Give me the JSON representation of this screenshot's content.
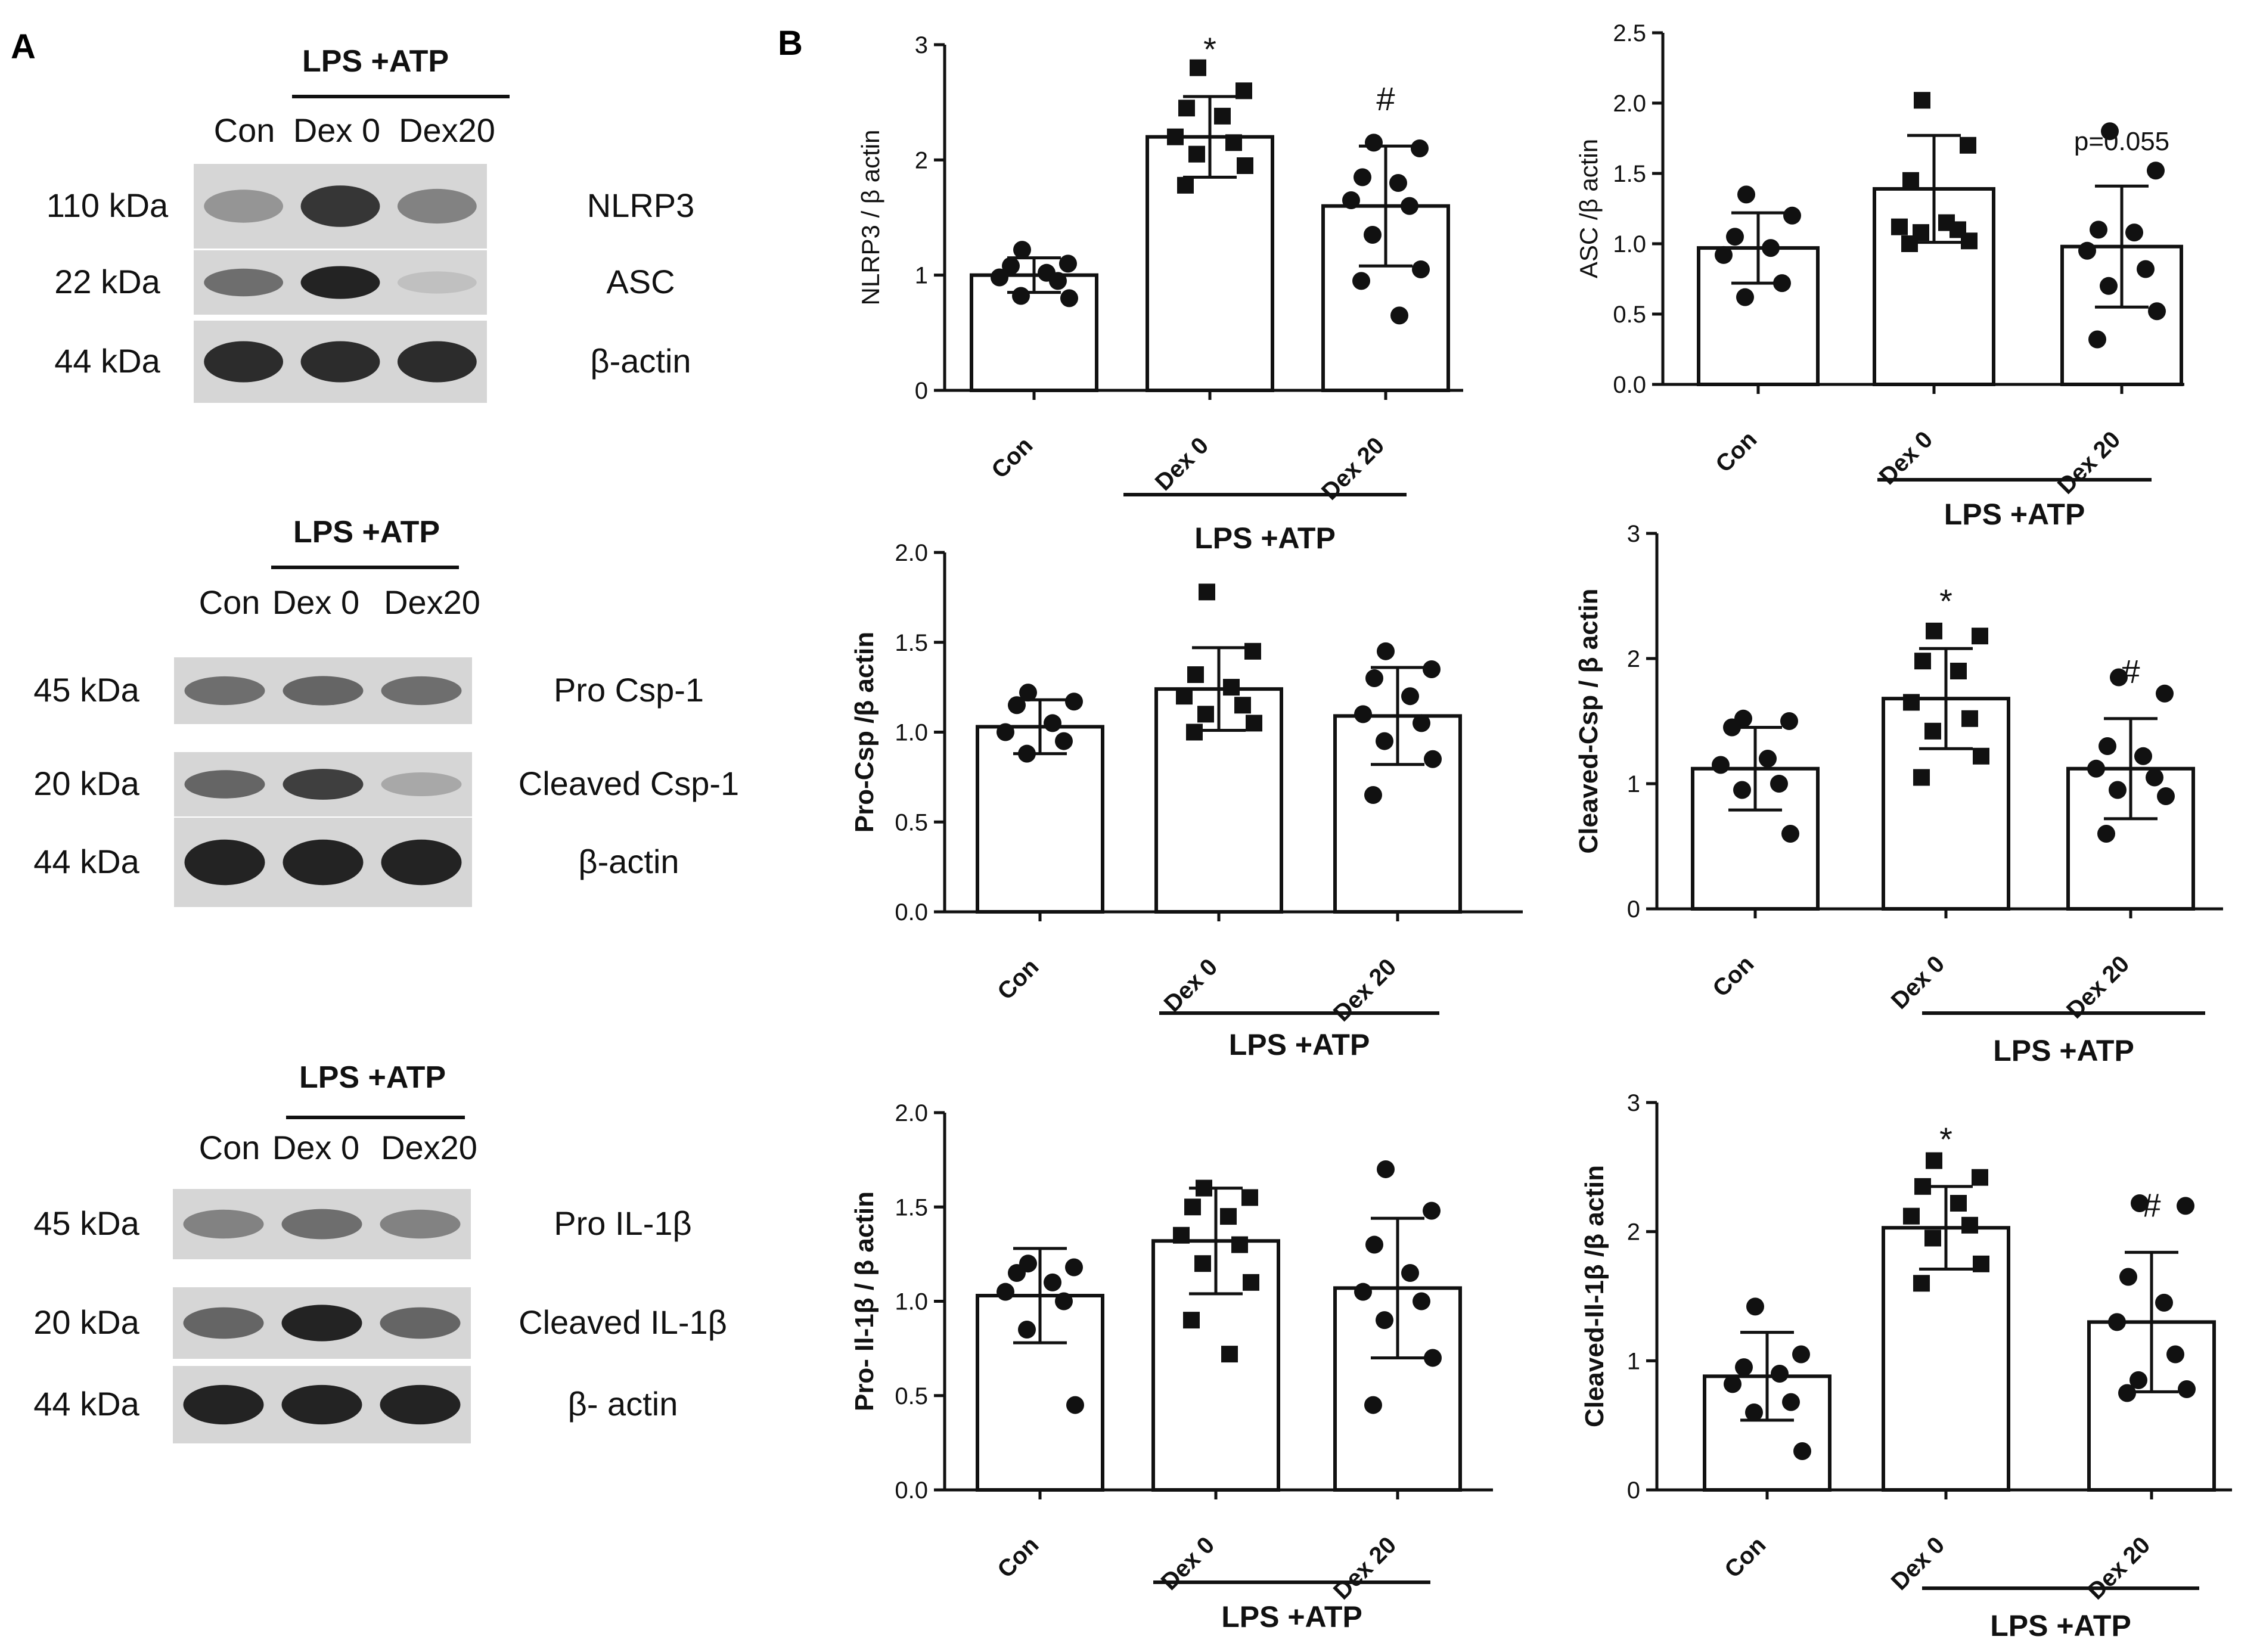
{
  "panels": {
    "a": "A",
    "b": "B"
  },
  "blots": [
    {
      "header": "LPS +ATP",
      "lanes": [
        "Con",
        "Dex 0",
        "Dex20"
      ],
      "rows": [
        {
          "mw": "110 kDa",
          "name": "NLRP3",
          "bands": [
            0.35,
            0.85,
            0.45
          ]
        },
        {
          "mw": "22 kDa",
          "name": "ASC",
          "bands": [
            0.55,
            0.95,
            0.12
          ]
        },
        {
          "mw": "44 kDa",
          "name": "β-actin",
          "bands": [
            0.9,
            0.9,
            0.9
          ]
        }
      ]
    },
    {
      "header": "LPS +ATP",
      "lanes": [
        "Con",
        "Dex 0",
        "Dex20"
      ],
      "rows": [
        {
          "mw": "45 kDa",
          "name": "Pro Csp-1",
          "bands": [
            0.55,
            0.6,
            0.55
          ]
        },
        {
          "mw": "20 kDa",
          "name": "Cleaved Csp-1",
          "bands": [
            0.6,
            0.8,
            0.25
          ]
        },
        {
          "mw": "44 kDa",
          "name": "β-actin",
          "bands": [
            0.95,
            0.95,
            0.95
          ]
        }
      ]
    },
    {
      "header": "LPS +ATP",
      "lanes": [
        "Con",
        "Dex 0",
        "Dex20"
      ],
      "rows": [
        {
          "mw": "45 kDa",
          "name": "Pro IL-1β",
          "bands": [
            0.45,
            0.55,
            0.45
          ]
        },
        {
          "mw": "20 kDa",
          "name": "Cleaved IL-1β",
          "bands": [
            0.6,
            0.95,
            0.6
          ]
        },
        {
          "mw": "44 kDa",
          "name": "β- actin",
          "bands": [
            0.95,
            0.95,
            0.95
          ]
        }
      ]
    }
  ],
  "chart_data": [
    {
      "type": "bar",
      "ylabel": "NLRP3 / β actin",
      "ylabel_bold": false,
      "ylim": [
        0,
        3
      ],
      "yticks": [
        "0",
        "1",
        "2",
        "3"
      ],
      "categories": [
        "Con",
        "Dex 0",
        "Dex 20"
      ],
      "group_label": "LPS +ATP",
      "values": [
        1.0,
        2.2,
        1.6
      ],
      "sd": [
        0.15,
        0.35,
        0.52
      ],
      "points": [
        [
          1.22,
          1.1,
          1.08,
          1.02,
          0.98,
          0.95,
          0.82,
          0.8
        ],
        [
          2.8,
          2.6,
          2.45,
          2.38,
          2.2,
          2.15,
          2.05,
          1.95,
          1.78
        ],
        [
          2.15,
          2.1,
          1.85,
          1.8,
          1.65,
          1.6,
          1.35,
          1.05,
          0.95,
          0.65
        ]
      ],
      "markers": [
        "circle",
        "square",
        "circle"
      ],
      "annotations": [
        "",
        "*",
        "#"
      ]
    },
    {
      "type": "bar",
      "ylabel": "ASC /β actin",
      "ylabel_bold": false,
      "ylim": [
        0,
        2.5
      ],
      "yticks": [
        "0.0",
        "0.5",
        "1.0",
        "1.5",
        "2.0",
        "2.5"
      ],
      "categories": [
        "Con",
        "Dex 0",
        "Dex 20"
      ],
      "group_label": "LPS +ATP",
      "values": [
        0.97,
        1.39,
        0.98
      ],
      "sd": [
        0.25,
        0.38,
        0.43
      ],
      "points": [
        [
          1.35,
          1.2,
          1.05,
          0.97,
          0.92,
          0.72,
          0.62
        ],
        [
          2.02,
          1.7,
          1.45,
          1.15,
          1.12,
          1.1,
          1.08,
          1.02,
          1.0
        ],
        [
          1.8,
          1.52,
          1.1,
          1.08,
          0.95,
          0.82,
          0.7,
          0.52,
          0.32
        ]
      ],
      "markers": [
        "circle",
        "square",
        "circle"
      ],
      "annotations": [
        "",
        "",
        "p=0.055"
      ]
    },
    {
      "type": "bar",
      "ylabel": "Pro-Csp /β actin",
      "ylabel_bold": true,
      "ylim": [
        0,
        2.0
      ],
      "yticks": [
        "0.0",
        "0.5",
        "1.0",
        "1.5",
        "2.0"
      ],
      "categories": [
        "Con",
        "Dex 0",
        "Dex 20"
      ],
      "group_label": "LPS +ATP",
      "values": [
        1.03,
        1.24,
        1.09
      ],
      "sd": [
        0.15,
        0.23,
        0.27
      ],
      "points": [
        [
          1.22,
          1.17,
          1.15,
          1.05,
          1.0,
          0.95,
          0.88
        ],
        [
          1.78,
          1.45,
          1.32,
          1.25,
          1.2,
          1.15,
          1.1,
          1.05,
          1.0
        ],
        [
          1.45,
          1.35,
          1.3,
          1.2,
          1.1,
          1.05,
          0.95,
          0.85,
          0.65
        ]
      ],
      "markers": [
        "circle",
        "square",
        "circle"
      ],
      "annotations": [
        "",
        "",
        ""
      ]
    },
    {
      "type": "bar",
      "ylabel": "Cleaved-Csp / β actin",
      "ylabel_bold": true,
      "ylim": [
        0,
        3
      ],
      "yticks": [
        "0",
        "1",
        "2",
        "3"
      ],
      "categories": [
        "Con",
        "Dex 0",
        "Dex 20"
      ],
      "group_label": "LPS +ATP",
      "values": [
        1.12,
        1.68,
        1.12
      ],
      "sd": [
        0.33,
        0.4,
        0.4
      ],
      "points": [
        [
          1.52,
          1.5,
          1.45,
          1.2,
          1.15,
          1.0,
          0.95,
          0.6
        ],
        [
          2.22,
          2.18,
          1.98,
          1.9,
          1.65,
          1.52,
          1.42,
          1.22,
          1.05
        ],
        [
          1.85,
          1.72,
          1.3,
          1.22,
          1.12,
          1.05,
          0.95,
          0.9,
          0.6
        ]
      ],
      "markers": [
        "circle",
        "square",
        "circle"
      ],
      "annotations": [
        "",
        "*",
        "#"
      ]
    },
    {
      "type": "bar",
      "ylabel": "Pro- Il-1β / β actin",
      "ylabel_bold": true,
      "ylim": [
        0,
        2.0
      ],
      "yticks": [
        "0.0",
        "0.5",
        "1.0",
        "1.5",
        "2.0"
      ],
      "categories": [
        "Con",
        "Dex 0",
        "Dex 20"
      ],
      "group_label": "LPS +ATP",
      "values": [
        1.03,
        1.32,
        1.07
      ],
      "sd": [
        0.25,
        0.28,
        0.37
      ],
      "points": [
        [
          1.2,
          1.18,
          1.15,
          1.1,
          1.05,
          1.0,
          0.85,
          0.45
        ],
        [
          1.6,
          1.55,
          1.5,
          1.45,
          1.35,
          1.3,
          1.2,
          1.1,
          0.9,
          0.72
        ],
        [
          1.7,
          1.48,
          1.3,
          1.15,
          1.05,
          1.0,
          0.9,
          0.7,
          0.45
        ]
      ],
      "markers": [
        "circle",
        "square",
        "circle"
      ],
      "annotations": [
        "",
        "",
        ""
      ]
    },
    {
      "type": "bar",
      "ylabel": "Cleaved-Il-1β /β actin",
      "ylabel_bold": true,
      "ylim": [
        0,
        3
      ],
      "yticks": [
        "0",
        "1",
        "2",
        "3"
      ],
      "categories": [
        "Con",
        "Dex 0",
        "Dex 20"
      ],
      "group_label": "LPS +ATP",
      "values": [
        0.88,
        2.03,
        1.3
      ],
      "sd": [
        0.34,
        0.32,
        0.54
      ],
      "points": [
        [
          1.42,
          1.05,
          0.95,
          0.9,
          0.82,
          0.68,
          0.6,
          0.3
        ],
        [
          2.55,
          2.42,
          2.35,
          2.22,
          2.12,
          2.05,
          1.95,
          1.75,
          1.6
        ],
        [
          2.22,
          2.2,
          1.65,
          1.45,
          1.3,
          1.05,
          0.85,
          0.78,
          0.75
        ]
      ],
      "markers": [
        "circle",
        "square",
        "circle"
      ],
      "annotations": [
        "",
        "*",
        "#"
      ]
    }
  ]
}
